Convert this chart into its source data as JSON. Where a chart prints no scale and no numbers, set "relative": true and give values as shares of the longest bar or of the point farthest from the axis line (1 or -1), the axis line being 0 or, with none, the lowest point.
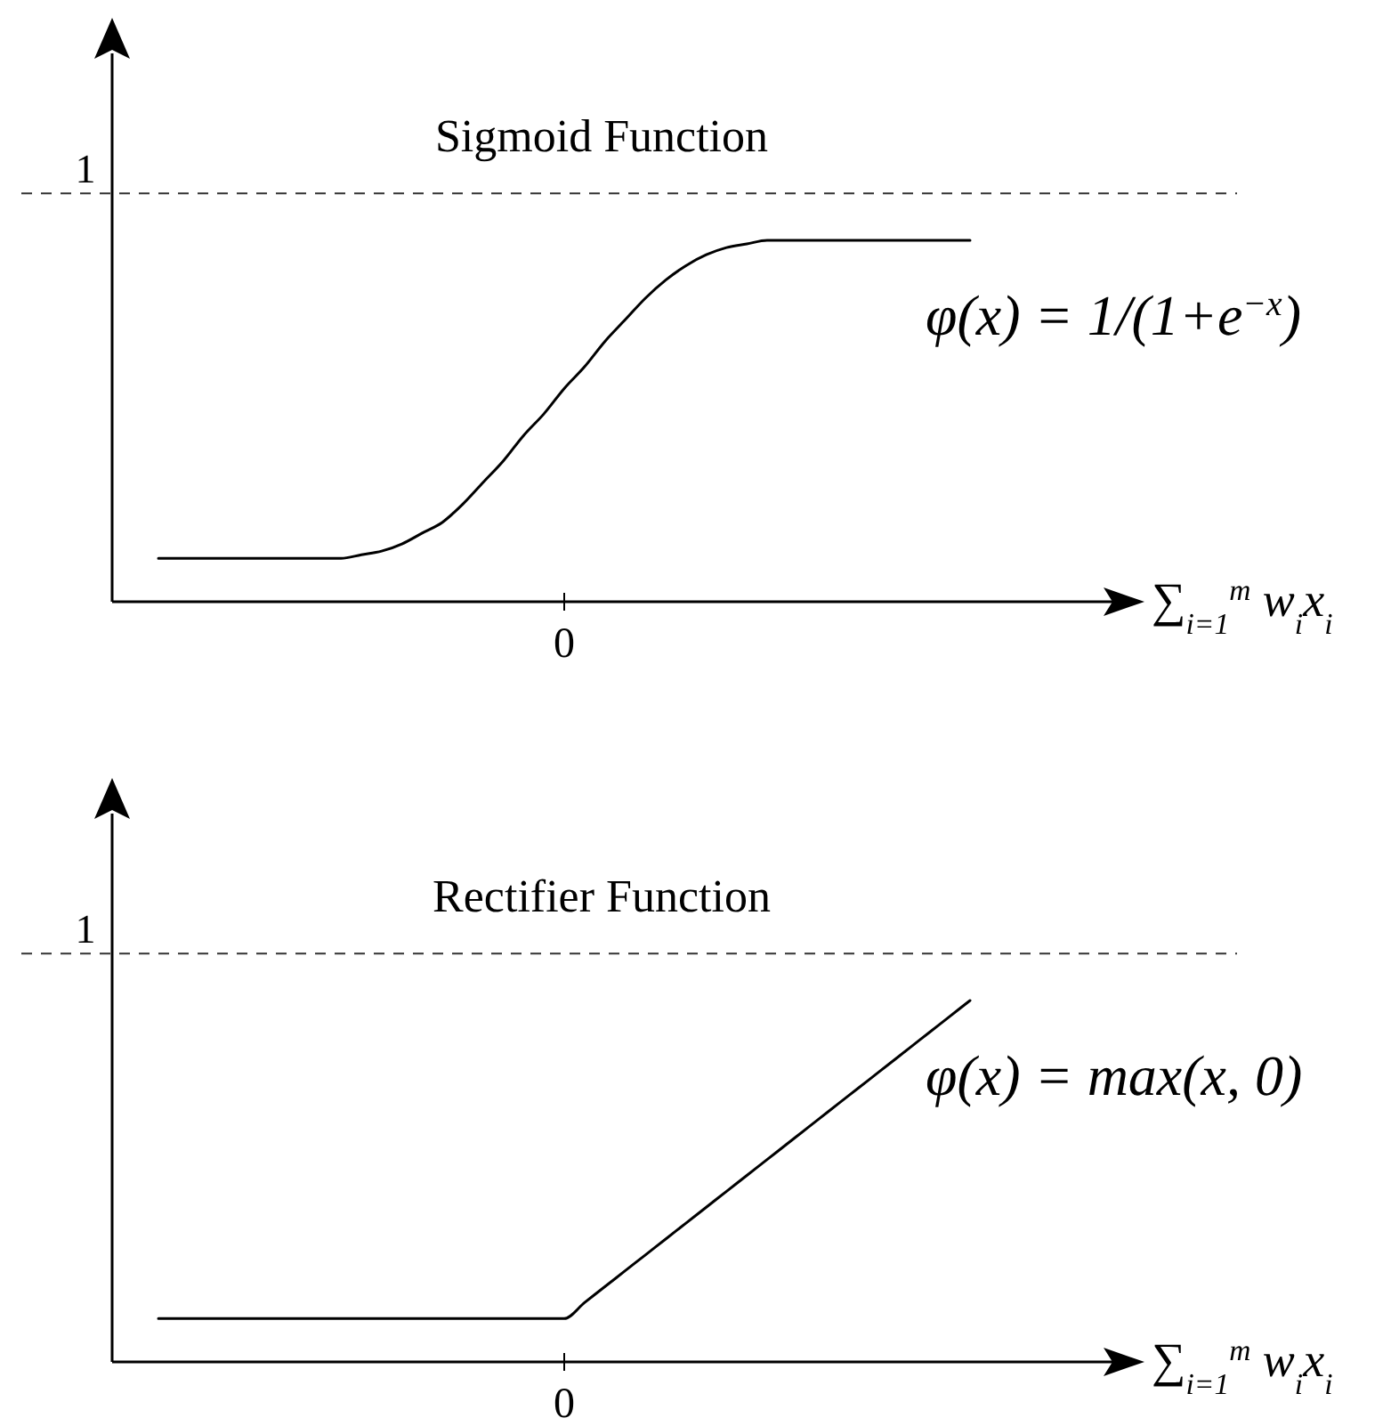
{
  "chart_data": [
    {
      "type": "line",
      "title": "Sigmoid Function",
      "xlabel": "∑$_{i=1}$$^{m}$ w$_{i}$x$_{i}$",
      "annotations": [
        "φ(x) = 1/(1+e$^{−x}$)",
        "0"
      ],
      "relative": true,
      "categories": [
        null,
        null,
        null,
        null,
        null,
        null,
        null,
        null,
        null,
        null,
        null,
        null,
        null,
        null,
        null,
        null,
        null,
        null,
        null,
        null,
        null,
        null,
        null,
        null,
        null,
        null,
        null,
        null,
        null,
        null,
        null,
        null,
        null,
        null,
        null,
        null,
        null,
        null,
        null,
        null,
        null
      ],
      "values": [
        0.12,
        0.12,
        0.12,
        0.12,
        0.12,
        0.12,
        0.12,
        0.12,
        0.12,
        0.12,
        0.13,
        0.14,
        0.16,
        0.19,
        0.22,
        0.27,
        0.33,
        0.39,
        0.46,
        0.52,
        0.59,
        0.65,
        0.72,
        0.78,
        0.84,
        0.89,
        0.93,
        0.96,
        0.98,
        0.99,
        1,
        1,
        1,
        1,
        1,
        1,
        1,
        1,
        1,
        1,
        1
      ],
      "color": "#000000",
      "ref_lines": [
        {
          "axis": "y",
          "value": 1.13,
          "label": "1",
          "line_style": "dashed"
        }
      ]
    },
    {
      "type": "line",
      "title": "Rectifier Function",
      "xlabel": "∑$_{i=1}$$^{m}$ w$_{i}$x$_{i}$",
      "annotations": [
        "φ(x) = max(x, 0)",
        "0"
      ],
      "relative": true,
      "categories": [
        null,
        null,
        null,
        null,
        null,
        null,
        null,
        null,
        null,
        null,
        null,
        null,
        null,
        null,
        null,
        null,
        null,
        null,
        null,
        null,
        null,
        null,
        null,
        null,
        null,
        null,
        null,
        null,
        null,
        null,
        null,
        null,
        null,
        null,
        null,
        null,
        null,
        null,
        null,
        null,
        null
      ],
      "values": [
        0.12,
        0.12,
        0.12,
        0.12,
        0.12,
        0.12,
        0.12,
        0.12,
        0.12,
        0.12,
        0.12,
        0.12,
        0.12,
        0.12,
        0.12,
        0.12,
        0.12,
        0.12,
        0.12,
        0.12,
        0.12,
        0.164,
        0.208,
        0.252,
        0.296,
        0.34,
        0.384,
        0.428,
        0.472,
        0.516,
        0.56,
        0.604,
        0.648,
        0.692,
        0.736,
        0.78,
        0.824,
        0.868,
        0.912,
        0.956,
        1
      ],
      "color": "#000000",
      "ref_lines": [
        {
          "axis": "y",
          "value": 1.13,
          "label": "1",
          "line_style": "dashed"
        }
      ]
    }
  ]
}
